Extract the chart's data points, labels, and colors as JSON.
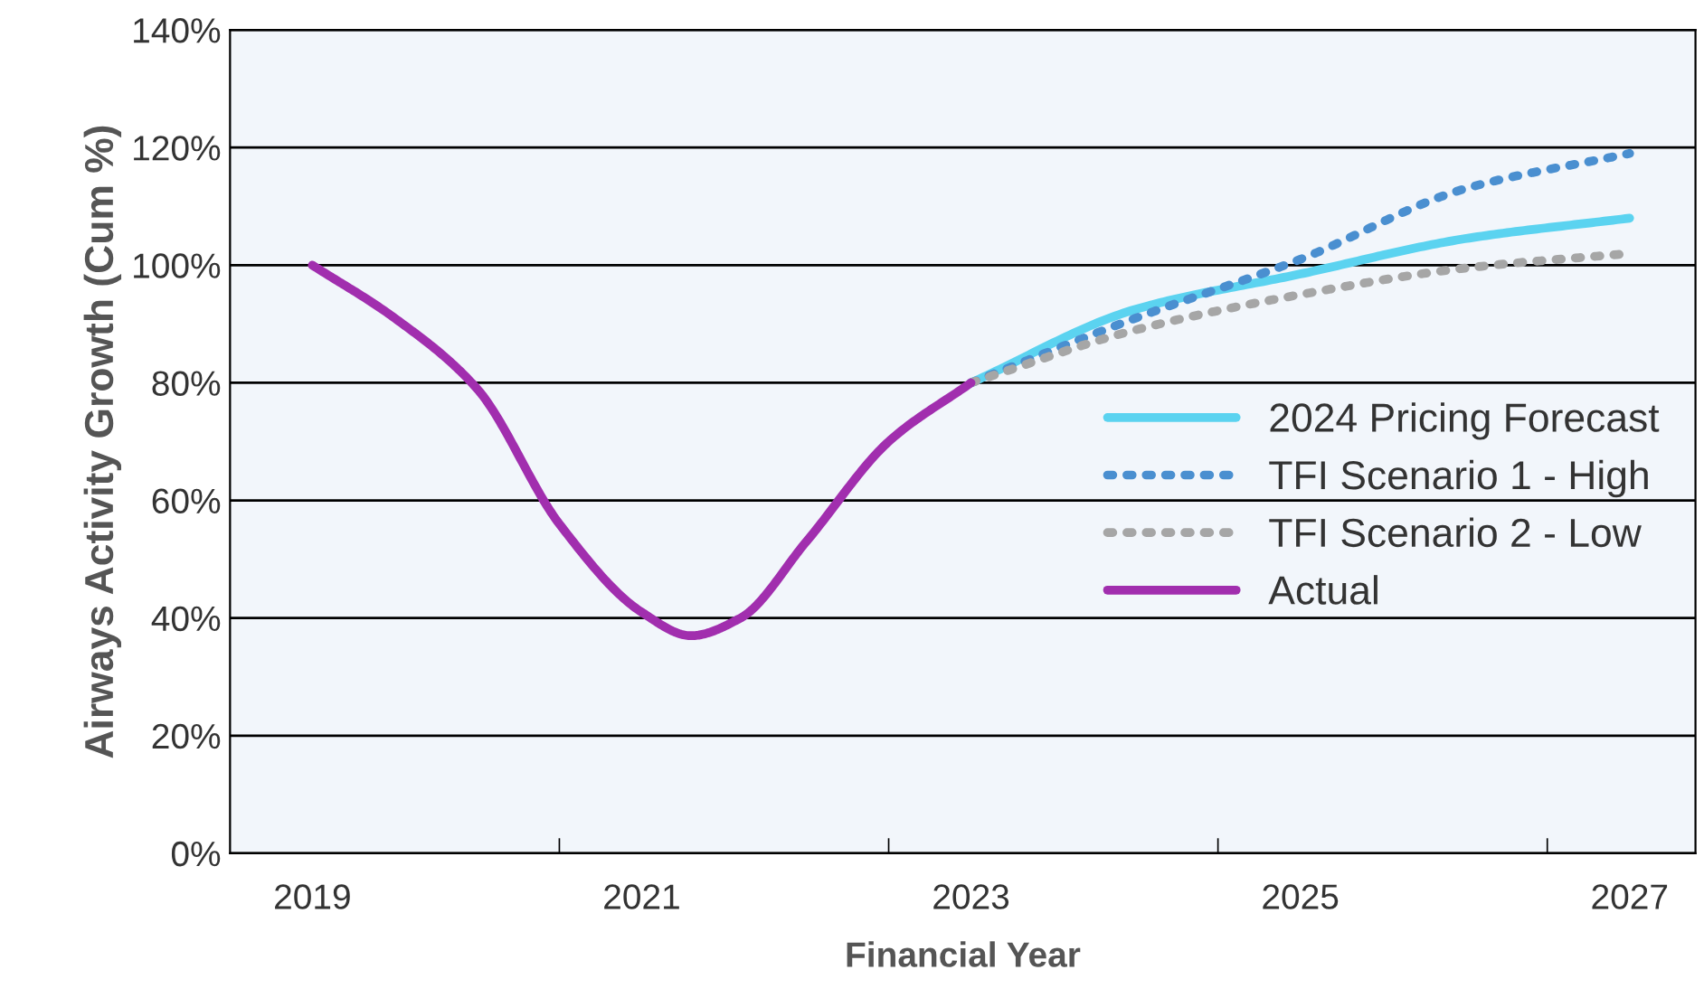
{
  "chart_data": {
    "type": "line",
    "xlabel": "Financial Year",
    "ylabel": "Airways Activity Growth (Cum %)",
    "x": [
      2019,
      2019.5,
      2020,
      2020.5,
      2021,
      2021.3,
      2021.6,
      2022,
      2022.5,
      2023
    ],
    "series": [
      {
        "name": "2024 Pricing Forecast",
        "color": "#5bd3f0",
        "line_style": "solid",
        "x": [
          2023,
          2024,
          2025,
          2026,
          2027
        ],
        "values": [
          80,
          92.5,
          98.5,
          104.5,
          108
        ]
      },
      {
        "name": "TFI Scenario 1 - High",
        "color": "#4a8fd0",
        "line_style": "dotted",
        "x": [
          2023,
          2024,
          2025,
          2026,
          2027
        ],
        "values": [
          80,
          91,
          101,
          113,
          119
        ]
      },
      {
        "name": "TFI Scenario 2 - Low",
        "color": "#a6a6a6",
        "line_style": "dotted",
        "x": [
          2023,
          2024,
          2025,
          2026,
          2027
        ],
        "values": [
          80,
          89,
          95,
          99.5,
          102
        ]
      },
      {
        "name": "Actual",
        "color": "#a12eae",
        "line_style": "solid",
        "values": [
          100,
          91,
          79,
          56,
          41,
          37,
          40,
          53,
          70,
          80
        ]
      }
    ],
    "xlim": [
      2018.5,
      2027.4
    ],
    "xticks": [
      2019,
      {
        "value": 2020.5,
        "label": null
      },
      2021,
      {
        "value": 2022.5,
        "label": null
      },
      2023,
      {
        "value": 2024.5,
        "label": null
      },
      2025,
      {
        "value": 2026.5,
        "label": null
      },
      2027
    ],
    "ylim": [
      0,
      140
    ],
    "yticks": [
      {
        "value": 0,
        "label": "0%"
      },
      {
        "value": 20,
        "label": "20%"
      },
      {
        "value": 40,
        "label": "40%"
      },
      {
        "value": 60,
        "label": "60%"
      },
      {
        "value": 80,
        "label": "80%"
      },
      {
        "value": 100,
        "label": "100%"
      },
      {
        "value": 120,
        "label": "120%"
      },
      {
        "value": 140,
        "label": "140%"
      }
    ],
    "grid": "y",
    "legend": "right",
    "marker": "none"
  }
}
